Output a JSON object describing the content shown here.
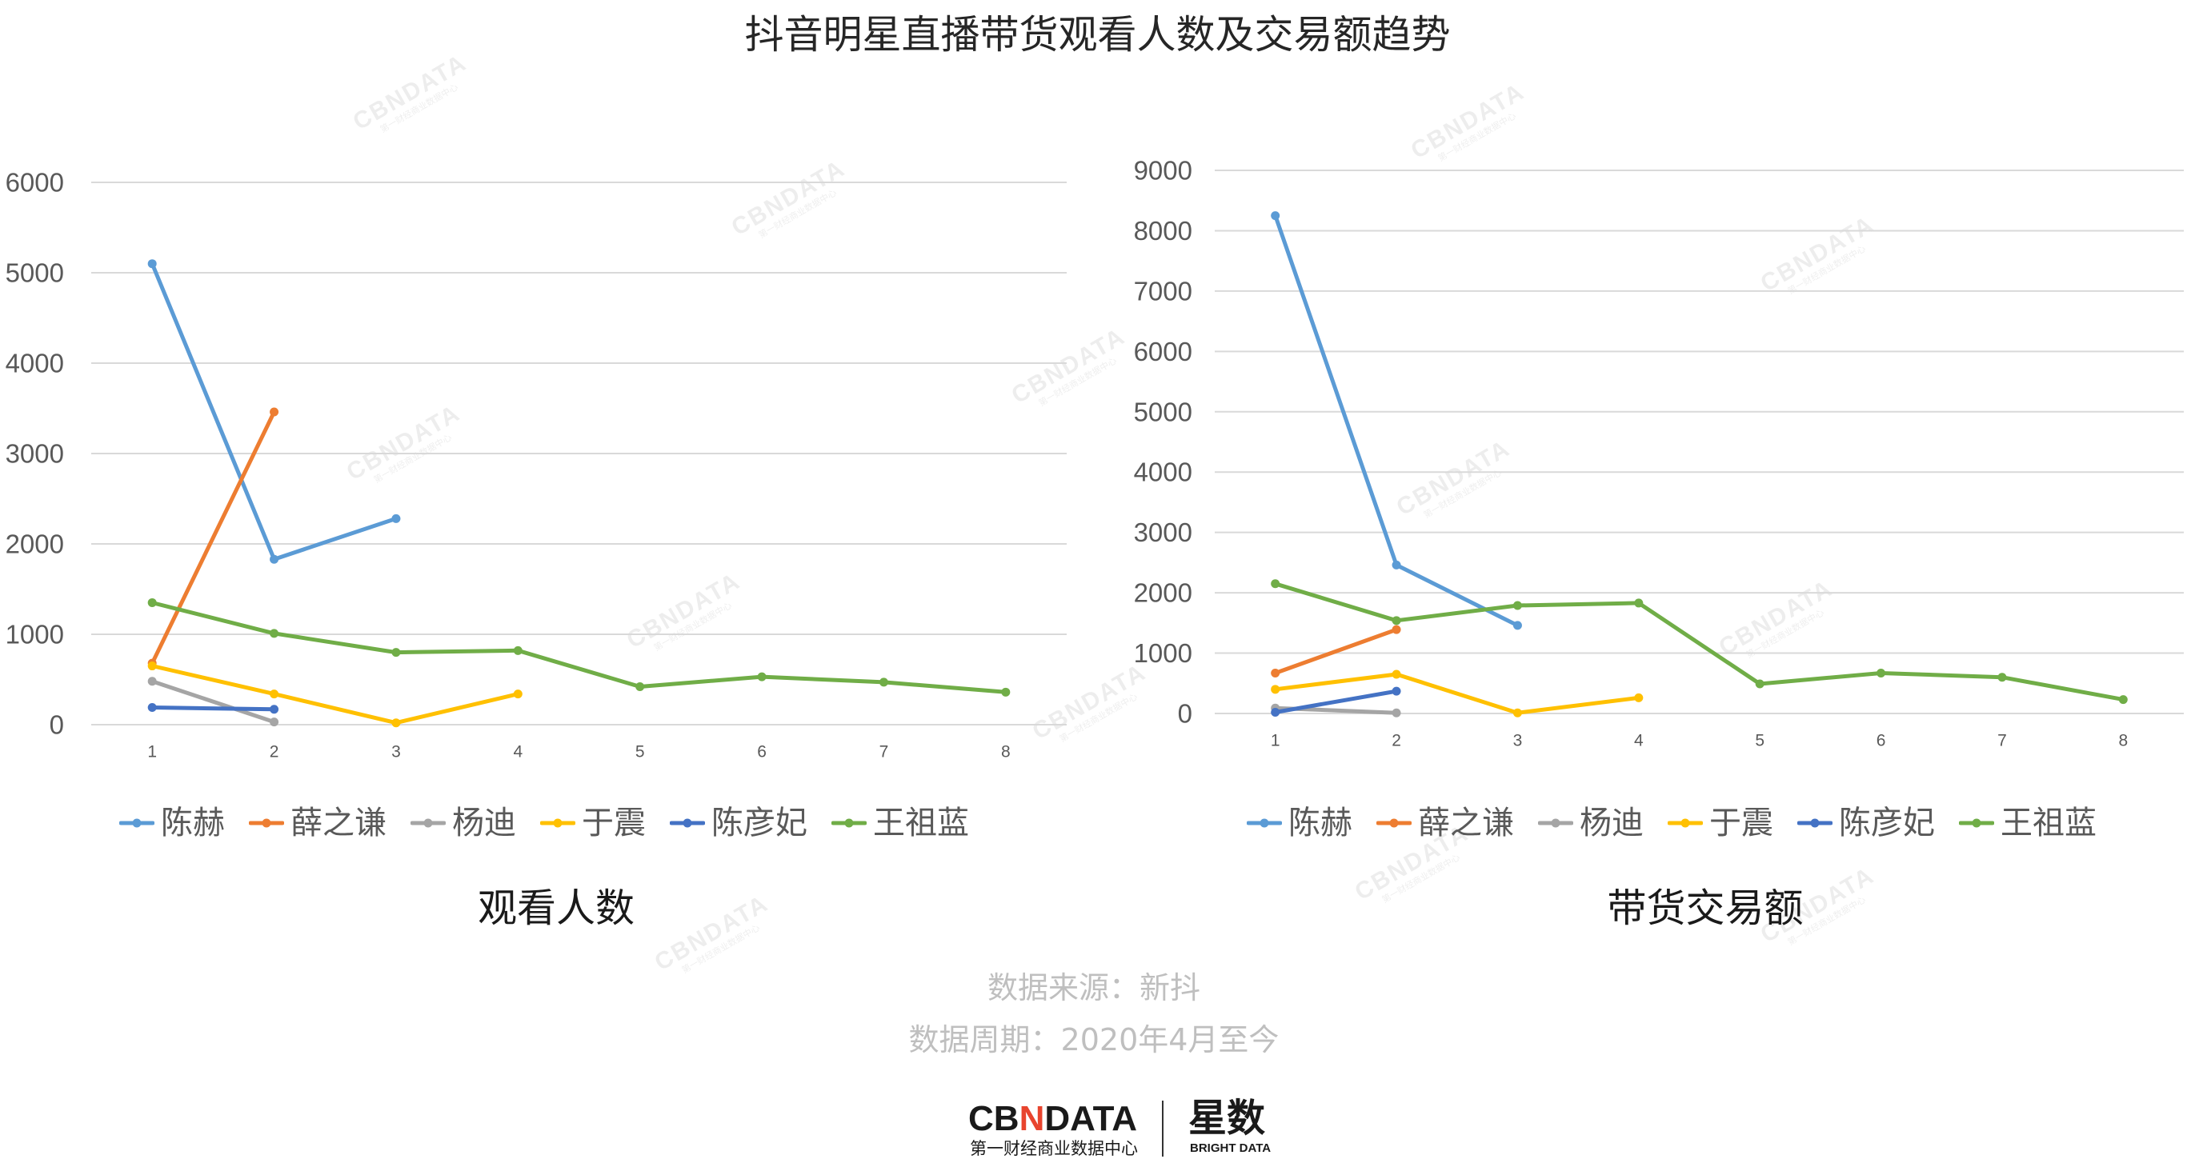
{
  "page": {
    "title": "抖音明星直播带货观看人数及交易额趋势"
  },
  "source": {
    "line1": "数据来源：新抖",
    "line2": "数据周期：2020年4月至今"
  },
  "logo": {
    "brand_left": "CB",
    "brand_mark": "N",
    "brand_right": "DATA",
    "brand_sub": "第一财经商业数据中心",
    "product": "星数",
    "product_sub": "BRIGHT DATA"
  },
  "watermark": {
    "text": "CBNDATA",
    "sub": "第一财经商业数据中心"
  },
  "chart_data": [
    {
      "type": "line",
      "title": "观看人数",
      "categories": [
        "1",
        "2",
        "3",
        "4",
        "5",
        "6",
        "7",
        "8"
      ],
      "ylim": [
        0,
        6000
      ],
      "yticks": [
        0,
        1000,
        2000,
        3000,
        4000,
        5000,
        6000
      ],
      "grid": true,
      "legend": "bottom",
      "series": [
        {
          "name": "陈赫",
          "color": "#5B9BD5",
          "values": [
            5100,
            1830,
            2280,
            null,
            null,
            null,
            null,
            null
          ]
        },
        {
          "name": "薛之谦",
          "color": "#ED7D31",
          "values": [
            680,
            3460,
            null,
            null,
            null,
            null,
            null,
            null
          ]
        },
        {
          "name": "杨迪",
          "color": "#A5A5A5",
          "values": [
            480,
            30,
            null,
            null,
            null,
            null,
            null,
            null
          ]
        },
        {
          "name": "于震",
          "color": "#FFC000",
          "values": [
            650,
            340,
            20,
            340,
            null,
            null,
            null,
            null
          ]
        },
        {
          "name": "陈彦妃",
          "color": "#4472C4",
          "values": [
            190,
            170,
            null,
            null,
            null,
            null,
            null,
            null
          ]
        },
        {
          "name": "王祖蓝",
          "color": "#70AD47",
          "values": [
            1350,
            1010,
            800,
            820,
            420,
            530,
            470,
            360
          ]
        }
      ]
    },
    {
      "type": "line",
      "title": "带货交易额",
      "categories": [
        "1",
        "2",
        "3",
        "4",
        "5",
        "6",
        "7",
        "8"
      ],
      "ylim": [
        0,
        9000
      ],
      "yticks": [
        0,
        1000,
        2000,
        3000,
        4000,
        5000,
        6000,
        7000,
        8000,
        9000
      ],
      "grid": true,
      "legend": "bottom",
      "series": [
        {
          "name": "陈赫",
          "color": "#5B9BD5",
          "values": [
            8250,
            2460,
            1460,
            null,
            null,
            null,
            null,
            null
          ]
        },
        {
          "name": "薛之谦",
          "color": "#ED7D31",
          "values": [
            670,
            1390,
            null,
            null,
            null,
            null,
            null,
            null
          ]
        },
        {
          "name": "杨迪",
          "color": "#A5A5A5",
          "values": [
            90,
            10,
            null,
            null,
            null,
            null,
            null,
            null
          ]
        },
        {
          "name": "于震",
          "color": "#FFC000",
          "values": [
            400,
            650,
            10,
            260,
            null,
            null,
            null,
            null
          ]
        },
        {
          "name": "陈彦妃",
          "color": "#4472C4",
          "values": [
            20,
            370,
            null,
            null,
            null,
            null,
            null,
            null
          ]
        },
        {
          "name": "王祖蓝",
          "color": "#70AD47",
          "values": [
            2150,
            1540,
            1790,
            1830,
            490,
            670,
            600,
            230
          ]
        }
      ]
    }
  ]
}
